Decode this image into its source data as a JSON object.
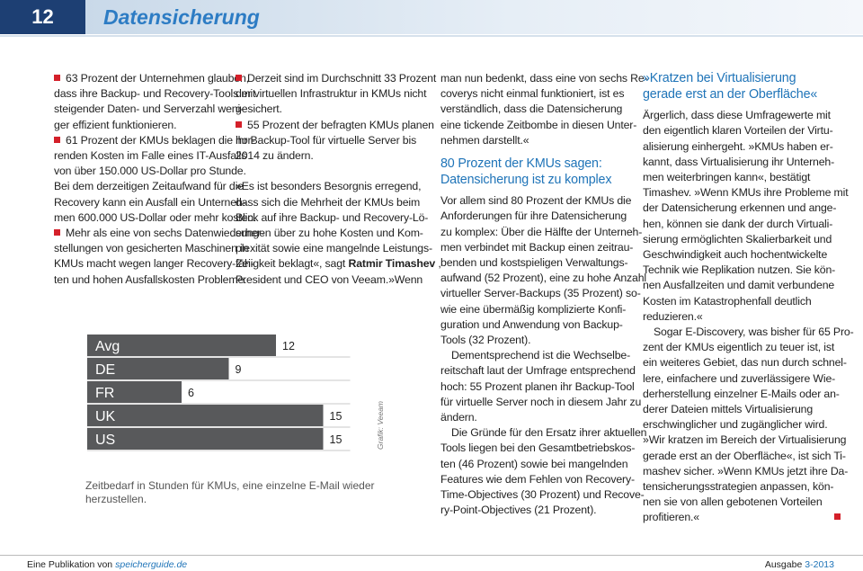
{
  "header": {
    "page_number": "12",
    "title": "Datensicherung"
  },
  "columns": [
    [
      {
        "style": "bullet",
        "lines": [
          "63 Prozent der Unternehmen glauben,",
          "dass ihre Backup- und Recovery-Tools mit",
          "steigender Daten- und Serverzahl weni-",
          "ger effizient funktionieren."
        ]
      },
      {
        "style": "bullet",
        "lines": [
          "61 Prozent der KMUs beklagen die hor-",
          "renden Kosten im Falle eines IT-Ausfalls",
          "von über 150.000 US-Dollar pro Stunde.",
          "Bei dem derzeitigen Zeitaufwand für die",
          "Recovery kann ein Ausfall ein Unterneh-",
          "men 600.000 US-Dollar oder mehr kosten."
        ]
      },
      {
        "style": "bullet",
        "lines": [
          "Mehr als eine von sechs Datenwiederher-",
          "stellungen von gesicherten Maschinen in",
          "KMUs macht wegen langer Recovery-Zei-",
          "ten und hohen Ausfallskosten Probleme."
        ]
      }
    ],
    [
      {
        "style": "bullet",
        "lines": [
          "Derzeit sind im Durchschnitt 33 Prozent",
          "der virtuellen Infrastruktur in KMUs nicht",
          "gesichert."
        ]
      },
      {
        "style": "bullet",
        "lines": [
          "55 Prozent der befragten KMUs planen",
          "ihr Backup-Tool für virtuelle Server bis",
          "2014 zu ändern."
        ]
      },
      {
        "style": "gap",
        "lines": [
          "»Es ist besonders Besorgnis erregend,",
          "dass sich die Mehrheit der KMUs beim",
          "Blick auf ihre Backup- und Recovery-Lö-",
          "sungen über zu hohe Kosten und Kom-",
          "plexität sowie eine mangelnde Leistungs-",
          {
            "parts": [
              "fähigkeit beklagt«, sagt",
              {
                "bold": "Ratmir Timashev"
              },
              ","
            ]
          },
          "President und CEO von Veeam.»Wenn"
        ]
      }
    ],
    [
      {
        "style": "plain",
        "lines": [
          "man nun bedenkt, dass eine von sechs Re-",
          "coverys nicht einmal funktioniert, ist es",
          "verständlich, dass die Datensicherung",
          "eine tickende Zeitbombe in diesen Unter-",
          "nehmen darstellt.«"
        ]
      },
      {
        "style": "heading",
        "lines": [
          "80 Prozent der KMUs sagen:",
          "Datensicherung ist zu komplex"
        ]
      },
      {
        "style": "plain",
        "lines": [
          "Vor allem sind 80 Prozent der KMUs die",
          "Anforderungen für ihre Datensicherung",
          "zu komplex: Über die Hälfte der Unterneh-",
          "men verbindet mit Backup einen zeitrau-",
          "benden und kostspieligen Verwaltungs-",
          "aufwand (52 Prozent), eine zu hohe Anzahl",
          "virtueller Server-Backups (35 Prozent) so-",
          "wie eine übermäßig komplizierte Konfi-",
          "guration und Anwendung von Backup-",
          "Tools (32 Prozent)."
        ]
      },
      {
        "style": "indent",
        "lines": [
          "Dementsprechend ist die Wechselbe-",
          "reitschaft laut der Umfrage entsprechend",
          "hoch: 55 Prozent planen ihr Backup-Tool",
          "für virtuelle Server noch in diesem Jahr zu",
          "ändern."
        ]
      },
      {
        "style": "indent",
        "lines": [
          "Die Gründe für den Ersatz ihrer aktuellen",
          "Tools liegen bei den Gesamtbetriebskos-",
          "ten (46 Prozent) sowie bei mangelnden",
          "Features wie dem Fehlen von Recovery-",
          "Time-Objectives (30 Prozent) und Recove-",
          "ry-Point-Objectives (21 Prozent)."
        ]
      }
    ],
    [
      {
        "style": "heading",
        "lines": [
          "»Kratzen bei Virtualisierung",
          "gerade erst an der Oberfläche«"
        ]
      },
      {
        "style": "plain",
        "lines": [
          "Ärgerlich, dass diese Umfragewerte mit",
          "den eigentlich klaren Vorteilen der Virtu-",
          "alisierung einhergeht. »KMUs haben er-",
          "kannt, dass Virtualisierung ihr Unterneh-",
          "men weiterbringen kann«, bestätigt",
          "Timashev. »Wenn KMUs ihre Probleme mit",
          "der Datensicherung erkennen und ange-",
          "hen, können sie dank der durch Virtuali-",
          "sierung ermöglichten Skalierbarkeit und",
          "Geschwindigkeit auch hochentwickelte",
          "Technik wie Replikation nutzen. Sie kön-",
          "nen Ausfallzeiten und damit verbundene",
          "Kosten im Katastrophenfall deutlich",
          "reduzieren.«"
        ]
      },
      {
        "style": "indent",
        "lines": [
          "Sogar E-Discovery, was bisher für 65 Pro-",
          "zent der KMUs eigentlich zu teuer ist, ist",
          "ein weiteres Gebiet, das nun durch schnel-",
          "lere, einfachere und zuverlässigere Wie-",
          "derherstellung einzelner E-Mails oder an-",
          "derer Dateien mittels Virtualisierung",
          "erschwinglicher und zugänglicher wird.",
          "»Wir kratzen im Bereich der Virtualisierung",
          "gerade erst an der Oberfläche«, ist sich Ti-",
          "mashev sicher. »Wenn KMUs jetzt ihre Da-",
          "tensicherungsstrategien anpassen, kön-",
          "nen sie von allen gebotenen Vorteilen",
          "profitieren.«"
        ]
      }
    ]
  ],
  "chart_data": {
    "type": "bar",
    "orientation": "horizontal",
    "categories": [
      "Avg",
      "DE",
      "FR",
      "UK",
      "US"
    ],
    "values": [
      12,
      9,
      6,
      15,
      15
    ],
    "color": "#58595b",
    "caption": [
      "Zeitbedarf in Stunden für KMUs, eine einzelne E-Mail wieder",
      "herzustellen."
    ],
    "source": "Grafik: Veeam"
  },
  "footer": {
    "left": [
      "Eine Publikation von",
      "speicherguide.de"
    ],
    "right": [
      "Ausgabe",
      "3-2013"
    ]
  }
}
